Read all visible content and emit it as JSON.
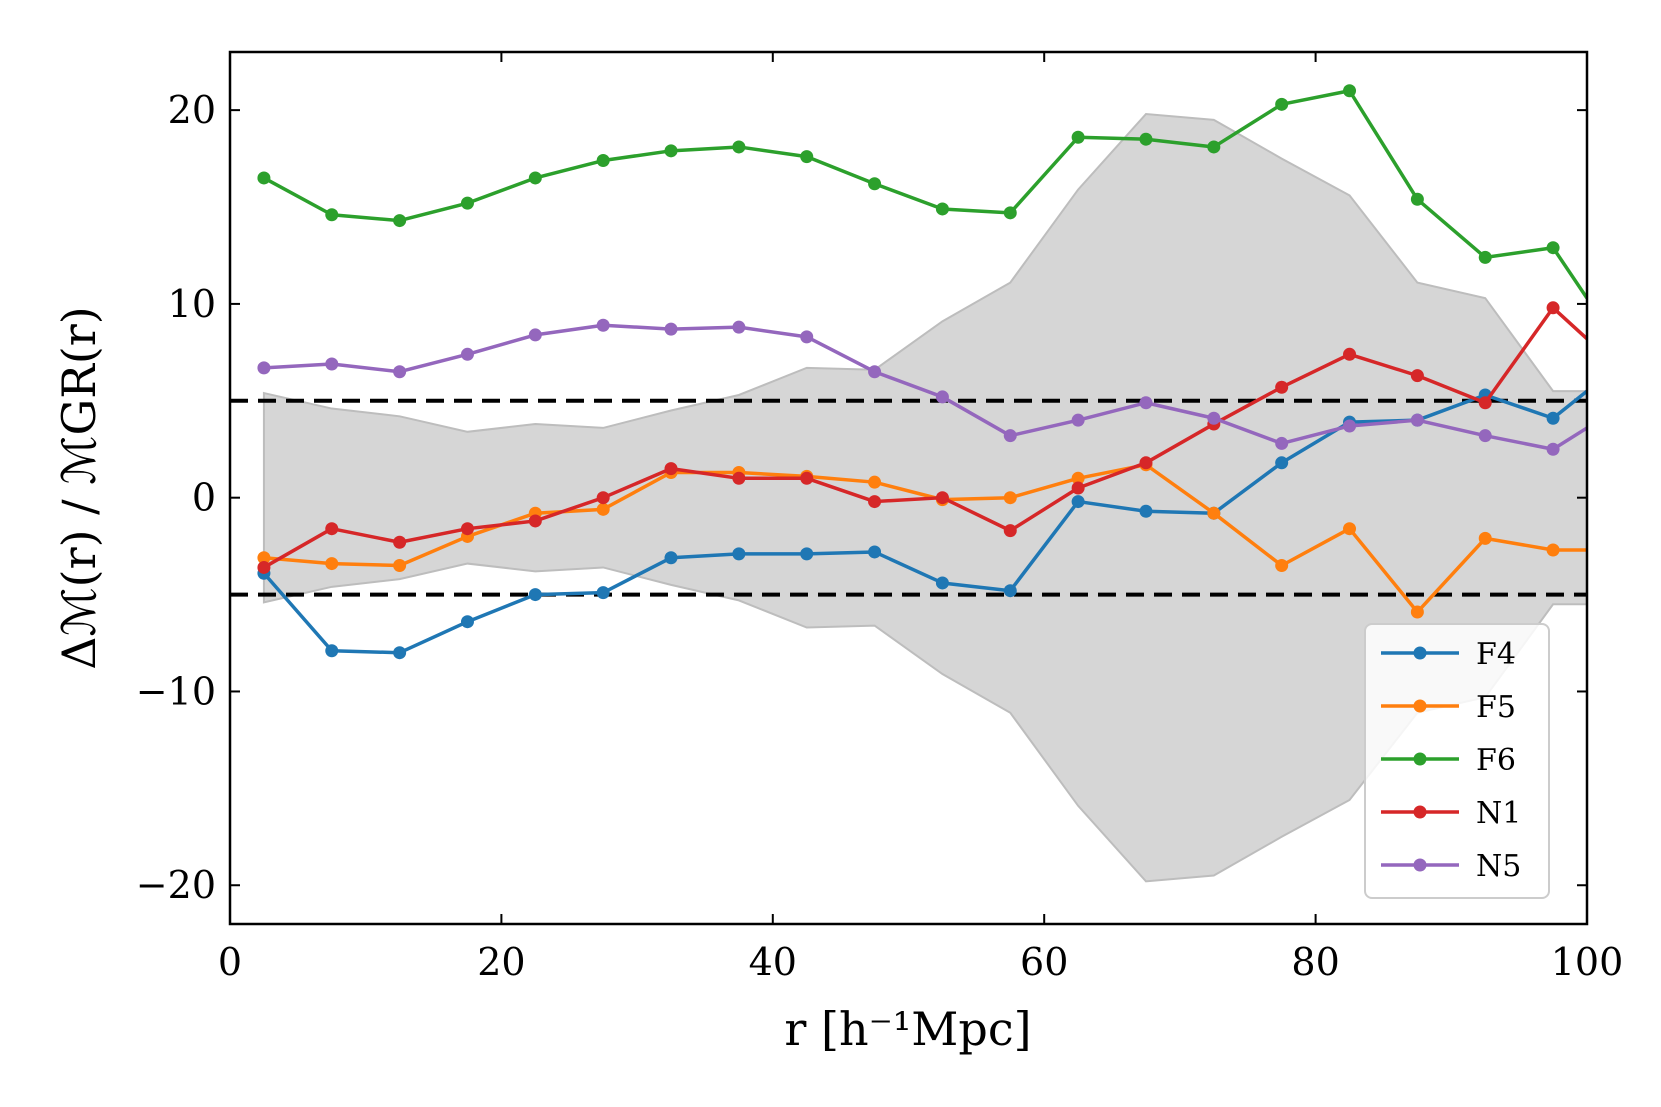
{
  "chart_data": {
    "type": "line",
    "xlabel": "r [h⁻¹Mpc]",
    "ylabel": "Δℳ(r) / ℳGR(r)",
    "xlim": [
      0,
      100
    ],
    "ylim": [
      -22,
      23
    ],
    "x_ticks": [
      0,
      20,
      40,
      60,
      80,
      100
    ],
    "y_ticks": [
      -20,
      -10,
      0,
      10,
      20
    ],
    "x_tick_labels": [
      "0",
      "20",
      "40",
      "60",
      "80",
      "100"
    ],
    "y_tick_labels": [
      "−20",
      "−10",
      "0",
      "10",
      "20"
    ],
    "grid": false,
    "legend_position": "lower-right",
    "reference_lines": [
      5,
      -5
    ],
    "band": {
      "x": [
        2.5,
        7.5,
        12.5,
        17.5,
        22.5,
        27.5,
        32.5,
        37.5,
        42.5,
        47.5,
        52.5,
        57.5,
        62.5,
        67.5,
        72.5,
        77.5,
        82.5,
        87.5,
        92.5,
        97.5,
        100
      ],
      "upper": [
        5.4,
        4.6,
        4.2,
        3.4,
        3.8,
        3.6,
        4.5,
        5.3,
        6.7,
        6.6,
        9.1,
        11.1,
        15.9,
        19.8,
        19.5,
        17.5,
        15.6,
        11.1,
        10.3,
        5.5,
        5.5
      ],
      "lower": [
        -5.4,
        -4.6,
        -4.2,
        -3.4,
        -3.8,
        -3.6,
        -4.5,
        -5.3,
        -6.7,
        -6.6,
        -9.1,
        -11.1,
        -15.9,
        -19.8,
        -19.5,
        -17.5,
        -15.6,
        -11.1,
        -10.3,
        -5.5,
        -5.5
      ]
    },
    "x": [
      2.5,
      7.5,
      12.5,
      17.5,
      22.5,
      27.5,
      32.5,
      37.5,
      42.5,
      47.5,
      52.5,
      57.5,
      62.5,
      67.5,
      72.5,
      77.5,
      82.5,
      87.5,
      92.5,
      97.5
    ],
    "series": [
      {
        "name": "F4",
        "color": "#1f77b4",
        "values": [
          -3.9,
          -7.9,
          -8.0,
          -6.4,
          -5.0,
          -4.9,
          -3.1,
          -2.9,
          -2.9,
          -2.8,
          -4.4,
          -4.8,
          -0.2,
          -0.7,
          -0.8,
          1.8,
          3.9,
          4.0,
          5.3,
          4.1
        ],
        "end_value": 5.5
      },
      {
        "name": "F5",
        "color": "#ff7f0e",
        "values": [
          -3.1,
          -3.4,
          -3.5,
          -2.0,
          -0.8,
          -0.6,
          1.3,
          1.3,
          1.1,
          0.8,
          -0.1,
          0.0,
          1.0,
          1.7,
          -0.8,
          -3.5,
          -1.6,
          -5.9,
          -2.1,
          -2.7
        ],
        "end_value": -2.7
      },
      {
        "name": "F6",
        "color": "#2ca02c",
        "values": [
          16.5,
          14.6,
          14.3,
          15.2,
          16.5,
          17.4,
          17.9,
          18.1,
          17.6,
          16.2,
          14.9,
          14.7,
          18.6,
          18.5,
          18.1,
          20.3,
          21.0,
          15.4,
          12.4,
          12.9
        ],
        "end_value": 10.3
      },
      {
        "name": "N1",
        "color": "#d62728",
        "values": [
          -3.6,
          -1.6,
          -2.3,
          -1.6,
          -1.2,
          0.0,
          1.5,
          1.0,
          1.0,
          -0.2,
          0.0,
          -1.7,
          0.5,
          1.8,
          3.8,
          5.7,
          7.4,
          6.3,
          4.9,
          9.8
        ],
        "end_value": 8.2
      },
      {
        "name": "N5",
        "color": "#9467bd",
        "values": [
          6.7,
          6.9,
          6.5,
          7.4,
          8.4,
          8.9,
          8.7,
          8.8,
          8.3,
          6.5,
          5.2,
          3.2,
          4.0,
          4.9,
          4.1,
          2.8,
          3.7,
          4.0,
          3.2,
          2.5
        ],
        "end_value": 3.6
      }
    ]
  }
}
